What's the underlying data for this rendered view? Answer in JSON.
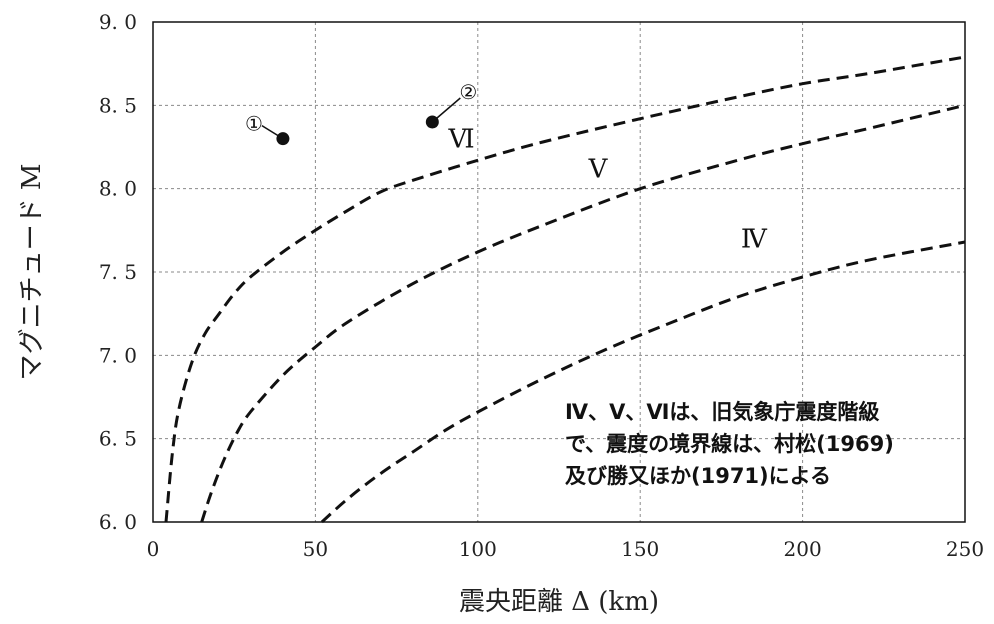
{
  "chart_data": {
    "type": "line",
    "xlabel": "震央距離 Δ (km)",
    "ylabel": "マグニチュード M",
    "xlim": [
      0,
      250
    ],
    "ylim": [
      6.0,
      9.0
    ],
    "x_ticks": [
      0,
      50,
      100,
      150,
      200,
      250
    ],
    "y_ticks": [
      6.0,
      6.5,
      7.0,
      7.5,
      8.0,
      8.5,
      9.0
    ],
    "x_tick_labels": [
      "0",
      "50",
      "100",
      "150",
      "200",
      "250"
    ],
    "y_tick_labels": [
      "6. 0",
      "6. 5",
      "7. 0",
      "7. 5",
      "8. 0",
      "8. 5",
      "9. 0"
    ],
    "grid": true,
    "series": [
      {
        "x": [
          4,
          6,
          8,
          12,
          16,
          20,
          25,
          30,
          40,
          50,
          60,
          70,
          80,
          100,
          120,
          150,
          180,
          200,
          220,
          250
        ],
        "y": [
          6.0,
          6.42,
          6.68,
          6.96,
          7.13,
          7.24,
          7.37,
          7.47,
          7.62,
          7.75,
          7.87,
          7.98,
          8.05,
          8.17,
          8.28,
          8.42,
          8.55,
          8.63,
          8.69,
          8.79
        ]
      },
      {
        "x": [
          15,
          18,
          22,
          26,
          30,
          40,
          50,
          60,
          80,
          100,
          120,
          150,
          180,
          200,
          220,
          250
        ],
        "y": [
          6.0,
          6.18,
          6.38,
          6.54,
          6.66,
          6.88,
          7.05,
          7.2,
          7.43,
          7.62,
          7.78,
          8.0,
          8.17,
          8.27,
          8.36,
          8.5
        ]
      },
      {
        "x": [
          52,
          60,
          70,
          80,
          90,
          100,
          120,
          140,
          160,
          180,
          200,
          220,
          250
        ],
        "y": [
          6.0,
          6.14,
          6.29,
          6.42,
          6.55,
          6.66,
          6.86,
          7.04,
          7.2,
          7.35,
          7.47,
          7.57,
          7.68
        ]
      }
    ],
    "points": [
      {
        "label": "①",
        "x": 40,
        "y": 8.3
      },
      {
        "label": "②",
        "x": 86,
        "y": 8.4
      }
    ],
    "region_labels": [
      {
        "text": "Ⅵ",
        "x": 95,
        "y": 8.3
      },
      {
        "text": "Ⅴ",
        "x": 137,
        "y": 8.12
      },
      {
        "text": "Ⅳ",
        "x": 185,
        "y": 7.7
      }
    ],
    "note_lines": [
      "Ⅳ、Ⅴ、Ⅵは、旧気象庁震度階級",
      "で、震度の境界線は、村松(1969)",
      "及び勝又ほか(1971)による"
    ]
  }
}
